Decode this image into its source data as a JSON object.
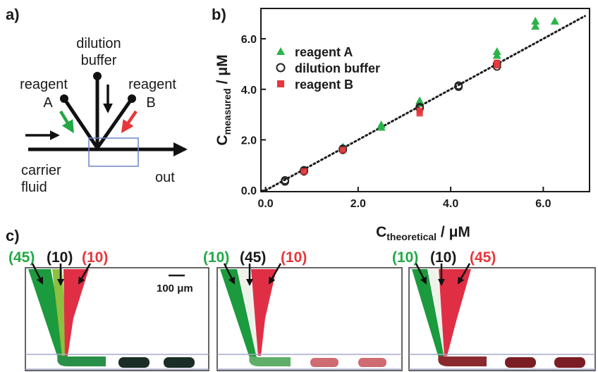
{
  "panel_a": {
    "letter": "a)",
    "top_label": [
      "dilution",
      "buffer"
    ],
    "left_label": [
      "reagent",
      "A"
    ],
    "right_label": [
      "reagent",
      "B"
    ],
    "carrier_label": [
      "carrier",
      "fluid"
    ],
    "out_label": "out",
    "colors": {
      "reagent_a": "#22a845",
      "reagent_b": "#e8363a",
      "box": "#6f84c8"
    }
  },
  "chart_data": {
    "type": "scatter",
    "panel_letter": "b)",
    "xlabel": {
      "symbol": "C",
      "subscript": "theoretical",
      "unit": " / μM"
    },
    "ylabel": {
      "symbol": "C",
      "subscript": "measured",
      "unit": " / μM"
    },
    "xlim": [
      -0.1,
      7.0
    ],
    "ylim": [
      -0.05,
      7.2
    ],
    "x_ticks": [
      "0.0",
      "2.0",
      "4.0",
      "6.0"
    ],
    "y_ticks": [
      "0.0",
      "2.0",
      "4.0",
      "6.0"
    ],
    "legend_position": "top-left",
    "fit_line": {
      "style": "dotted",
      "x": [
        0.0,
        6.9
      ],
      "y": [
        0.0,
        6.9
      ]
    },
    "series": [
      {
        "name": "reagent A",
        "marker": "triangle",
        "color": "#2bb34a",
        "points": [
          [
            1.67,
            1.72
          ],
          [
            2.5,
            2.6
          ],
          [
            2.5,
            2.5
          ],
          [
            3.33,
            3.55
          ],
          [
            3.33,
            3.45
          ],
          [
            5.0,
            5.5
          ],
          [
            5.0,
            5.35
          ],
          [
            5.83,
            6.7
          ],
          [
            5.83,
            6.5
          ],
          [
            6.25,
            6.7
          ]
        ]
      },
      {
        "name": "dilution buffer",
        "marker": "circle-open",
        "color": "#222222",
        "points": [
          [
            0.42,
            0.35
          ],
          [
            0.42,
            0.4
          ],
          [
            0.83,
            0.75
          ],
          [
            0.83,
            0.8
          ],
          [
            1.67,
            1.6
          ],
          [
            1.67,
            1.65
          ],
          [
            3.33,
            3.3
          ],
          [
            3.33,
            3.25
          ],
          [
            4.17,
            4.15
          ],
          [
            4.17,
            4.1
          ],
          [
            5.0,
            5.0
          ],
          [
            5.0,
            4.9
          ]
        ]
      },
      {
        "name": "reagent B",
        "marker": "square",
        "color": "#e8363a",
        "points": [
          [
            0.83,
            0.75
          ],
          [
            1.67,
            1.6
          ],
          [
            3.33,
            3.15
          ],
          [
            3.33,
            3.05
          ],
          [
            5.0,
            4.95
          ],
          [
            5.0,
            5.05
          ]
        ]
      }
    ]
  },
  "panel_c": {
    "letter": "c)",
    "scale_bar": "100 μm",
    "groups": [
      {
        "ratio_a": "(45)",
        "ratio_buf": "(10)",
        "ratio_b": "(10)"
      },
      {
        "ratio_a": "(10)",
        "ratio_buf": "(45)",
        "ratio_b": "(10)"
      },
      {
        "ratio_a": "(10)",
        "ratio_buf": "(10)",
        "ratio_b": "(45)"
      }
    ]
  }
}
